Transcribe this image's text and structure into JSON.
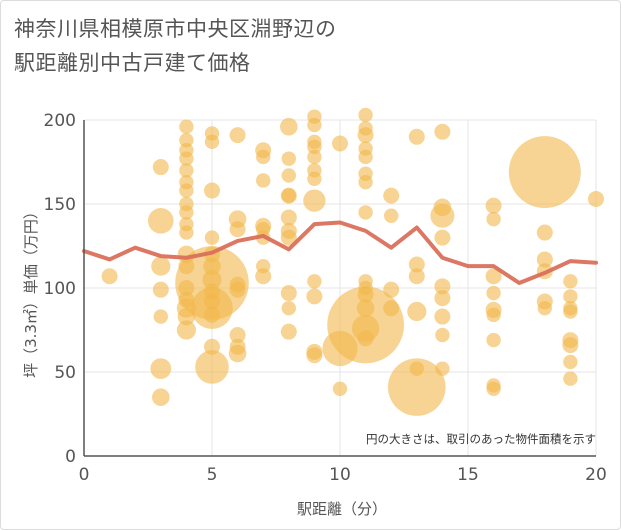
{
  "title_line1": "神奈川県相模原市中央区淵野辺の",
  "title_line2": "駅距離別中古戸建て価格",
  "note": "円の大きさは、取引のあった物件面積を示す",
  "colors": {
    "bubble": "#f2b84b",
    "line": "#d9705a",
    "grid": "#e6e6e6",
    "axis": "#555555"
  },
  "chart_data": {
    "type": "scatter",
    "xlabel": "駅距離（分）",
    "ylabel": "坪（3.3㎡）単価（万円）",
    "xlim": [
      0,
      20
    ],
    "ylim": [
      0,
      200
    ],
    "xticks": [
      0,
      5,
      10,
      15,
      20
    ],
    "yticks": [
      0,
      50,
      100,
      150,
      200
    ],
    "grid": true,
    "bubbles": [
      {
        "x": 1,
        "y": 107,
        "s": 1
      },
      {
        "x": 3,
        "y": 172,
        "s": 1
      },
      {
        "x": 3,
        "y": 140,
        "s": 1.6
      },
      {
        "x": 3,
        "y": 113,
        "s": 1.2
      },
      {
        "x": 3,
        "y": 99,
        "s": 1
      },
      {
        "x": 3,
        "y": 83,
        "s": 0.9
      },
      {
        "x": 3,
        "y": 52,
        "s": 1.3
      },
      {
        "x": 3,
        "y": 35,
        "s": 1.1
      },
      {
        "x": 4,
        "y": 196,
        "s": 0.9
      },
      {
        "x": 4,
        "y": 188,
        "s": 0.9
      },
      {
        "x": 4,
        "y": 182,
        "s": 0.9
      },
      {
        "x": 4,
        "y": 177,
        "s": 0.9
      },
      {
        "x": 4,
        "y": 170,
        "s": 0.9
      },
      {
        "x": 4,
        "y": 163,
        "s": 0.9
      },
      {
        "x": 4,
        "y": 158,
        "s": 0.9
      },
      {
        "x": 4,
        "y": 150,
        "s": 0.9
      },
      {
        "x": 4,
        "y": 145,
        "s": 0.9
      },
      {
        "x": 4,
        "y": 138,
        "s": 0.9
      },
      {
        "x": 4,
        "y": 133,
        "s": 0.9
      },
      {
        "x": 4,
        "y": 120,
        "s": 1.1
      },
      {
        "x": 4,
        "y": 113,
        "s": 1
      },
      {
        "x": 4,
        "y": 100,
        "s": 1
      },
      {
        "x": 4,
        "y": 93,
        "s": 1
      },
      {
        "x": 4,
        "y": 88,
        "s": 1.2
      },
      {
        "x": 4,
        "y": 83,
        "s": 1.1
      },
      {
        "x": 4,
        "y": 75,
        "s": 1.2
      },
      {
        "x": 5,
        "y": 192,
        "s": 0.9
      },
      {
        "x": 5,
        "y": 187,
        "s": 0.9
      },
      {
        "x": 5,
        "y": 158,
        "s": 1
      },
      {
        "x": 5,
        "y": 130,
        "s": 0.9
      },
      {
        "x": 5,
        "y": 120,
        "s": 1
      },
      {
        "x": 5,
        "y": 113,
        "s": 1.1
      },
      {
        "x": 5,
        "y": 105,
        "s": 1.2
      },
      {
        "x": 5,
        "y": 103,
        "s": 4.6
      },
      {
        "x": 5,
        "y": 98,
        "s": 1
      },
      {
        "x": 5,
        "y": 92,
        "s": 1
      },
      {
        "x": 5,
        "y": 88,
        "s": 2.6
      },
      {
        "x": 5,
        "y": 84,
        "s": 1
      },
      {
        "x": 5,
        "y": 65,
        "s": 1
      },
      {
        "x": 5,
        "y": 53,
        "s": 2.1
      },
      {
        "x": 6,
        "y": 191,
        "s": 1
      },
      {
        "x": 6,
        "y": 141,
        "s": 1.1
      },
      {
        "x": 6,
        "y": 135,
        "s": 1
      },
      {
        "x": 6,
        "y": 102,
        "s": 1
      },
      {
        "x": 6,
        "y": 99,
        "s": 1
      },
      {
        "x": 6,
        "y": 72,
        "s": 1
      },
      {
        "x": 6,
        "y": 65,
        "s": 1
      },
      {
        "x": 6,
        "y": 61,
        "s": 1.1
      },
      {
        "x": 7,
        "y": 182,
        "s": 1
      },
      {
        "x": 7,
        "y": 178,
        "s": 0.9
      },
      {
        "x": 7,
        "y": 164,
        "s": 0.9
      },
      {
        "x": 7,
        "y": 137,
        "s": 1
      },
      {
        "x": 7,
        "y": 135,
        "s": 0.9
      },
      {
        "x": 7,
        "y": 130,
        "s": 0.9
      },
      {
        "x": 7,
        "y": 113,
        "s": 0.9
      },
      {
        "x": 7,
        "y": 107,
        "s": 1
      },
      {
        "x": 8,
        "y": 196,
        "s": 1.1
      },
      {
        "x": 8,
        "y": 177,
        "s": 0.9
      },
      {
        "x": 8,
        "y": 167,
        "s": 0.9
      },
      {
        "x": 8,
        "y": 155,
        "s": 0.9
      },
      {
        "x": 8,
        "y": 155,
        "s": 1
      },
      {
        "x": 8,
        "y": 142,
        "s": 1
      },
      {
        "x": 8,
        "y": 134,
        "s": 1
      },
      {
        "x": 8,
        "y": 130,
        "s": 1
      },
      {
        "x": 8,
        "y": 97,
        "s": 1
      },
      {
        "x": 8,
        "y": 88,
        "s": 0.9
      },
      {
        "x": 8,
        "y": 74,
        "s": 1
      },
      {
        "x": 9,
        "y": 202,
        "s": 0.9
      },
      {
        "x": 9,
        "y": 197,
        "s": 0.9
      },
      {
        "x": 9,
        "y": 187,
        "s": 0.9
      },
      {
        "x": 9,
        "y": 184,
        "s": 0.9
      },
      {
        "x": 9,
        "y": 178,
        "s": 0.9
      },
      {
        "x": 9,
        "y": 170,
        "s": 0.9
      },
      {
        "x": 9,
        "y": 165,
        "s": 0.9
      },
      {
        "x": 9,
        "y": 152,
        "s": 1.4
      },
      {
        "x": 9,
        "y": 104,
        "s": 0.9
      },
      {
        "x": 9,
        "y": 95,
        "s": 1
      },
      {
        "x": 9,
        "y": 62,
        "s": 1
      },
      {
        "x": 9,
        "y": 60,
        "s": 1
      },
      {
        "x": 10,
        "y": 186,
        "s": 1
      },
      {
        "x": 10,
        "y": 64,
        "s": 2.2
      },
      {
        "x": 10,
        "y": 40,
        "s": 0.9
      },
      {
        "x": 11,
        "y": 203,
        "s": 0.9
      },
      {
        "x": 11,
        "y": 195,
        "s": 0.9
      },
      {
        "x": 11,
        "y": 191,
        "s": 1
      },
      {
        "x": 11,
        "y": 183,
        "s": 0.9
      },
      {
        "x": 11,
        "y": 178,
        "s": 0.9
      },
      {
        "x": 11,
        "y": 168,
        "s": 0.9
      },
      {
        "x": 11,
        "y": 163,
        "s": 0.9
      },
      {
        "x": 11,
        "y": 145,
        "s": 0.9
      },
      {
        "x": 11,
        "y": 104,
        "s": 0.9
      },
      {
        "x": 11,
        "y": 100,
        "s": 0.9
      },
      {
        "x": 11,
        "y": 96,
        "s": 1
      },
      {
        "x": 11,
        "y": 88,
        "s": 1.1
      },
      {
        "x": 11,
        "y": 78,
        "s": 4.8
      },
      {
        "x": 11,
        "y": 76,
        "s": 1.7
      },
      {
        "x": 11,
        "y": 70,
        "s": 1
      },
      {
        "x": 12,
        "y": 155,
        "s": 1
      },
      {
        "x": 12,
        "y": 143,
        "s": 0.9
      },
      {
        "x": 12,
        "y": 99,
        "s": 1
      },
      {
        "x": 12,
        "y": 88,
        "s": 1
      },
      {
        "x": 13,
        "y": 190,
        "s": 1
      },
      {
        "x": 13,
        "y": 114,
        "s": 1
      },
      {
        "x": 13,
        "y": 107,
        "s": 1
      },
      {
        "x": 13,
        "y": 86,
        "s": 1.2
      },
      {
        "x": 13,
        "y": 52,
        "s": 0.9
      },
      {
        "x": 13,
        "y": 41,
        "s": 3.6
      },
      {
        "x": 14,
        "y": 193,
        "s": 1
      },
      {
        "x": 14,
        "y": 148,
        "s": 1.1
      },
      {
        "x": 14,
        "y": 143,
        "s": 1.5
      },
      {
        "x": 14,
        "y": 130,
        "s": 1
      },
      {
        "x": 14,
        "y": 101,
        "s": 1
      },
      {
        "x": 14,
        "y": 94,
        "s": 1
      },
      {
        "x": 14,
        "y": 83,
        "s": 1
      },
      {
        "x": 14,
        "y": 72,
        "s": 0.9
      },
      {
        "x": 14,
        "y": 52,
        "s": 0.9
      },
      {
        "x": 16,
        "y": 149,
        "s": 1
      },
      {
        "x": 16,
        "y": 141,
        "s": 0.9
      },
      {
        "x": 16,
        "y": 107,
        "s": 1
      },
      {
        "x": 16,
        "y": 97,
        "s": 0.9
      },
      {
        "x": 16,
        "y": 87,
        "s": 1
      },
      {
        "x": 16,
        "y": 84,
        "s": 0.9
      },
      {
        "x": 16,
        "y": 69,
        "s": 0.9
      },
      {
        "x": 16,
        "y": 42,
        "s": 0.9
      },
      {
        "x": 16,
        "y": 40,
        "s": 0.9
      },
      {
        "x": 18,
        "y": 169,
        "s": 4.5
      },
      {
        "x": 18,
        "y": 133,
        "s": 1
      },
      {
        "x": 18,
        "y": 117,
        "s": 1
      },
      {
        "x": 18,
        "y": 110,
        "s": 1
      },
      {
        "x": 18,
        "y": 92,
        "s": 1
      },
      {
        "x": 18,
        "y": 88,
        "s": 0.9
      },
      {
        "x": 19,
        "y": 104,
        "s": 0.9
      },
      {
        "x": 19,
        "y": 95,
        "s": 0.9
      },
      {
        "x": 19,
        "y": 88,
        "s": 0.9
      },
      {
        "x": 19,
        "y": 86,
        "s": 0.9
      },
      {
        "x": 19,
        "y": 69,
        "s": 1
      },
      {
        "x": 19,
        "y": 66,
        "s": 1
      },
      {
        "x": 19,
        "y": 56,
        "s": 0.9
      },
      {
        "x": 19,
        "y": 46,
        "s": 0.9
      },
      {
        "x": 20,
        "y": 153,
        "s": 1
      }
    ],
    "trend": {
      "x": [
        0,
        1,
        2,
        3,
        4,
        5,
        6,
        7,
        8,
        9,
        10,
        11,
        12,
        13,
        14,
        15,
        16,
        17,
        18,
        19,
        20
      ],
      "y": [
        122,
        117,
        124,
        119,
        118,
        121,
        128,
        131,
        123,
        138,
        139,
        134,
        124,
        136,
        118,
        113,
        113,
        103,
        109,
        116,
        115
      ]
    }
  }
}
